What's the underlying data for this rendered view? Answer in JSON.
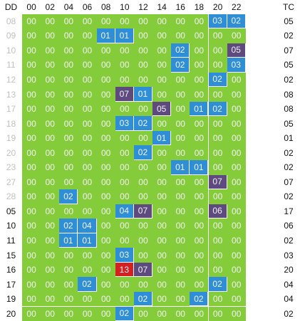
{
  "colors": {
    "green": "#84cc3a",
    "blue": "#2f8fd6",
    "darkblue": "#2a6ea8",
    "purple": "#5e4a7e",
    "red": "#d42020",
    "past_label": "#c0c0c0"
  },
  "header": {
    "corner": "DD",
    "hours": [
      "00",
      "02",
      "04",
      "06",
      "08",
      "10",
      "12",
      "14",
      "16",
      "18",
      "20",
      "22"
    ],
    "tc": "TC"
  },
  "rows": [
    {
      "dd": "08",
      "past": true,
      "tc": "05",
      "cells": [
        "00",
        "00",
        "00",
        "00",
        "00",
        "00",
        "00",
        "00",
        "00",
        "00",
        "03",
        "02"
      ],
      "hl": {
        "10": "blue",
        "11": "blue"
      }
    },
    {
      "dd": "09",
      "past": true,
      "tc": "02",
      "cells": [
        "00",
        "00",
        "00",
        "00",
        "01",
        "01",
        "00",
        "00",
        "00",
        "00",
        "00",
        "00"
      ],
      "hl": {
        "4": "blue",
        "5": "blue"
      }
    },
    {
      "dd": "10",
      "past": true,
      "tc": "07",
      "cells": [
        "00",
        "00",
        "00",
        "00",
        "00",
        "00",
        "00",
        "00",
        "02",
        "00",
        "00",
        "05"
      ],
      "hl": {
        "8": "blue",
        "11": "purple"
      }
    },
    {
      "dd": "11",
      "past": true,
      "tc": "05",
      "cells": [
        "00",
        "00",
        "00",
        "00",
        "00",
        "00",
        "00",
        "00",
        "02",
        "00",
        "00",
        "03"
      ],
      "hl": {
        "8": "blue",
        "11": "blue"
      }
    },
    {
      "dd": "12",
      "past": true,
      "tc": "02",
      "cells": [
        "00",
        "00",
        "00",
        "00",
        "00",
        "00",
        "00",
        "00",
        "00",
        "00",
        "02",
        "00"
      ],
      "hl": {
        "10": "blue"
      }
    },
    {
      "dd": "13",
      "past": true,
      "tc": "08",
      "cells": [
        "00",
        "00",
        "00",
        "00",
        "00",
        "07",
        "01",
        "00",
        "00",
        "00",
        "00",
        "00"
      ],
      "hl": {
        "5": "purple",
        "6": "blue"
      }
    },
    {
      "dd": "17",
      "past": true,
      "tc": "08",
      "cells": [
        "00",
        "00",
        "00",
        "00",
        "00",
        "00",
        "00",
        "05",
        "00",
        "01",
        "02",
        "00"
      ],
      "hl": {
        "7": "purple",
        "9": "blue",
        "10": "blue"
      }
    },
    {
      "dd": "18",
      "past": true,
      "tc": "05",
      "cells": [
        "00",
        "00",
        "00",
        "00",
        "00",
        "03",
        "02",
        "00",
        "00",
        "00",
        "00",
        "00"
      ],
      "hl": {
        "5": "blue",
        "6": "blue"
      }
    },
    {
      "dd": "19",
      "past": true,
      "tc": "01",
      "cells": [
        "00",
        "00",
        "00",
        "00",
        "00",
        "00",
        "00",
        "01",
        "00",
        "00",
        "00",
        "00"
      ],
      "hl": {
        "7": "blue"
      }
    },
    {
      "dd": "20",
      "past": true,
      "tc": "02",
      "cells": [
        "00",
        "00",
        "00",
        "00",
        "00",
        "00",
        "02",
        "00",
        "00",
        "00",
        "00",
        "00"
      ],
      "hl": {
        "6": "blue"
      }
    },
    {
      "dd": "23",
      "past": true,
      "tc": "02",
      "cells": [
        "00",
        "00",
        "00",
        "00",
        "00",
        "00",
        "00",
        "00",
        "01",
        "01",
        "00",
        "00"
      ],
      "hl": {
        "8": "blue",
        "9": "blue"
      }
    },
    {
      "dd": "27",
      "past": true,
      "tc": "07",
      "cells": [
        "00",
        "00",
        "00",
        "00",
        "00",
        "00",
        "00",
        "00",
        "00",
        "00",
        "07",
        "00"
      ],
      "hl": {
        "10": "purple"
      }
    },
    {
      "dd": "28",
      "past": true,
      "tc": "02",
      "cells": [
        "00",
        "00",
        "02",
        "00",
        "00",
        "00",
        "00",
        "00",
        "00",
        "00",
        "00",
        "00"
      ],
      "hl": {
        "2": "blue"
      }
    },
    {
      "dd": "05",
      "past": false,
      "tc": "17",
      "cells": [
        "00",
        "00",
        "00",
        "00",
        "00",
        "04",
        "07",
        "00",
        "00",
        "00",
        "06",
        "00"
      ],
      "hl": {
        "5": "blue",
        "6": "purple",
        "10": "purple"
      }
    },
    {
      "dd": "10",
      "past": false,
      "tc": "06",
      "cells": [
        "00",
        "00",
        "02",
        "04",
        "00",
        "00",
        "00",
        "00",
        "00",
        "00",
        "00",
        "00"
      ],
      "hl": {
        "2": "blue",
        "3": "blue"
      }
    },
    {
      "dd": "11",
      "past": false,
      "tc": "02",
      "cells": [
        "00",
        "00",
        "01",
        "01",
        "00",
        "00",
        "00",
        "00",
        "00",
        "00",
        "00",
        "00"
      ],
      "hl": {
        "2": "blue",
        "3": "blue"
      }
    },
    {
      "dd": "15",
      "past": false,
      "tc": "03",
      "cells": [
        "00",
        "00",
        "00",
        "00",
        "00",
        "03",
        "00",
        "00",
        "00",
        "00",
        "00",
        "00"
      ],
      "hl": {
        "5": "blue"
      }
    },
    {
      "dd": "16",
      "past": false,
      "tc": "20",
      "cells": [
        "00",
        "00",
        "00",
        "00",
        "00",
        "13",
        "07",
        "00",
        "00",
        "00",
        "00",
        "00"
      ],
      "hl": {
        "5": "red",
        "6": "purple"
      }
    },
    {
      "dd": "17",
      "past": false,
      "tc": "04",
      "cells": [
        "00",
        "00",
        "00",
        "02",
        "00",
        "00",
        "00",
        "00",
        "00",
        "00",
        "02",
        "00"
      ],
      "hl": {
        "3": "blue",
        "10": "blue"
      }
    },
    {
      "dd": "19",
      "past": false,
      "tc": "04",
      "cells": [
        "00",
        "00",
        "00",
        "00",
        "00",
        "00",
        "02",
        "00",
        "00",
        "02",
        "00",
        "00"
      ],
      "hl": {
        "6": "blue",
        "9": "blue"
      }
    },
    {
      "dd": "20",
      "past": false,
      "tc": "02",
      "cells": [
        "00",
        "00",
        "00",
        "00",
        "00",
        "02",
        "00",
        "00",
        "00",
        "00",
        "00",
        "00"
      ],
      "hl": {
        "5": "blue"
      }
    }
  ]
}
